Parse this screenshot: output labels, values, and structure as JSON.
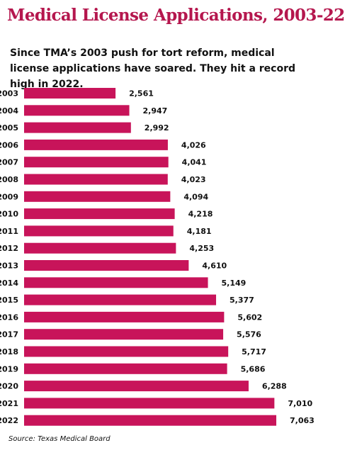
{
  "chart_data": {
    "type": "bar",
    "orientation": "horizontal",
    "title": "Medical License Applications, 2003-22",
    "subtitle": "Since TMA’s 2003 push for tort reform, medical license applications have soared. They hit a record high in 2022.",
    "source": "Source: Texas Medical Board",
    "categories": [
      "2003",
      "2004",
      "2005",
      "2006",
      "2007",
      "2008",
      "2009",
      "2010",
      "2011",
      "2012",
      "2013",
      "2014",
      "2015",
      "2016",
      "2017",
      "2018",
      "2019",
      "2020",
      "2021",
      "2022"
    ],
    "values": [
      2561,
      2947,
      2992,
      4026,
      4041,
      4023,
      4094,
      4218,
      4181,
      4253,
      4610,
      5149,
      5377,
      5602,
      5576,
      5717,
      5686,
      6288,
      7010,
      7063
    ],
    "value_labels": [
      "2,561",
      "2,947",
      "2,992",
      "4,026",
      "4,041",
      "4,023",
      "4,094",
      "4,218",
      "4,181",
      "4,253",
      "4,610",
      "5,149",
      "5,377",
      "5,602",
      "5,576",
      "5,717",
      "5,686",
      "6,288",
      "7,010",
      "7,063"
    ],
    "bar_color": "#c8145a",
    "title_color": "#b5174e",
    "grid": false
  }
}
